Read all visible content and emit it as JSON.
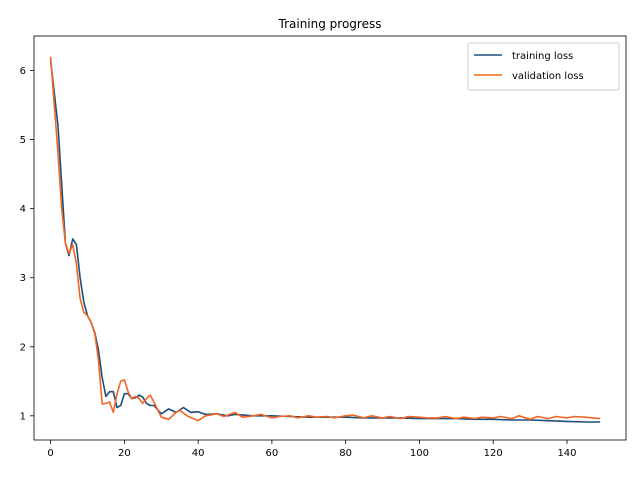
{
  "chart_data": {
    "type": "line",
    "title": "Training progress",
    "xlabel": "",
    "ylabel": "",
    "xlim": [
      -4.5,
      156
    ],
    "ylim": [
      0.65,
      6.5
    ],
    "x_ticks": [
      0,
      20,
      40,
      60,
      80,
      100,
      120,
      140
    ],
    "y_ticks": [
      1,
      2,
      3,
      4,
      5,
      6
    ],
    "grid": false,
    "legend_position": "top-right",
    "series": [
      {
        "name": "training loss",
        "color": "#1f4e79",
        "x": [
          0,
          2,
          4,
          5,
          6,
          7,
          8,
          9,
          10,
          11,
          12,
          13,
          14,
          15,
          16,
          17,
          18,
          19,
          20,
          21,
          22,
          23,
          24,
          25,
          26,
          27,
          28,
          30,
          32,
          34,
          36,
          38,
          40,
          42,
          45,
          48,
          50,
          55,
          60,
          65,
          70,
          75,
          80,
          85,
          90,
          95,
          100,
          105,
          110,
          115,
          120,
          125,
          130,
          135,
          140,
          145,
          149
        ],
        "y": [
          6.15,
          5.2,
          3.5,
          3.32,
          3.56,
          3.48,
          3.0,
          2.65,
          2.45,
          2.35,
          2.2,
          1.95,
          1.55,
          1.28,
          1.35,
          1.35,
          1.12,
          1.15,
          1.32,
          1.32,
          1.25,
          1.26,
          1.3,
          1.27,
          1.18,
          1.15,
          1.15,
          1.03,
          1.1,
          1.05,
          1.12,
          1.05,
          1.06,
          1.02,
          1.03,
          1.0,
          1.02,
          1.0,
          1.0,
          0.99,
          0.98,
          0.98,
          0.98,
          0.97,
          0.97,
          0.97,
          0.96,
          0.96,
          0.96,
          0.95,
          0.95,
          0.94,
          0.94,
          0.93,
          0.92,
          0.91,
          0.91
        ]
      },
      {
        "name": "validation loss",
        "color": "#f26522",
        "x": [
          0,
          2,
          3,
          4,
          5,
          6,
          7,
          8,
          9,
          10,
          11,
          12,
          13,
          14,
          15,
          16,
          17,
          18,
          19,
          20,
          21,
          22,
          23,
          24,
          25,
          26,
          27,
          28,
          30,
          32,
          34,
          35,
          37,
          40,
          42,
          45,
          47,
          50,
          52,
          55,
          57,
          60,
          62,
          65,
          67,
          70,
          72,
          75,
          77,
          80,
          82,
          85,
          87,
          90,
          92,
          95,
          97,
          100,
          102,
          105,
          107,
          110,
          112,
          115,
          117,
          120,
          122,
          125,
          127,
          130,
          132,
          135,
          137,
          140,
          142,
          145,
          147,
          149
        ],
        "y": [
          6.2,
          4.8,
          4.0,
          3.5,
          3.35,
          3.48,
          3.2,
          2.7,
          2.5,
          2.45,
          2.35,
          2.18,
          1.8,
          1.17,
          1.18,
          1.2,
          1.05,
          1.32,
          1.5,
          1.52,
          1.35,
          1.25,
          1.28,
          1.25,
          1.18,
          1.25,
          1.3,
          1.2,
          0.98,
          0.95,
          1.05,
          1.08,
          1.0,
          0.93,
          1.0,
          1.03,
          0.99,
          1.05,
          0.98,
          1.0,
          1.02,
          0.97,
          0.99,
          1.0,
          0.97,
          1.0,
          0.98,
          0.99,
          0.97,
          1.0,
          1.01,
          0.97,
          1.0,
          0.97,
          0.99,
          0.96,
          0.99,
          0.98,
          0.97,
          0.97,
          0.99,
          0.96,
          0.98,
          0.96,
          0.98,
          0.97,
          0.99,
          0.96,
          1.0,
          0.95,
          0.99,
          0.96,
          0.99,
          0.97,
          0.99,
          0.98,
          0.97,
          0.96
        ]
      }
    ]
  }
}
